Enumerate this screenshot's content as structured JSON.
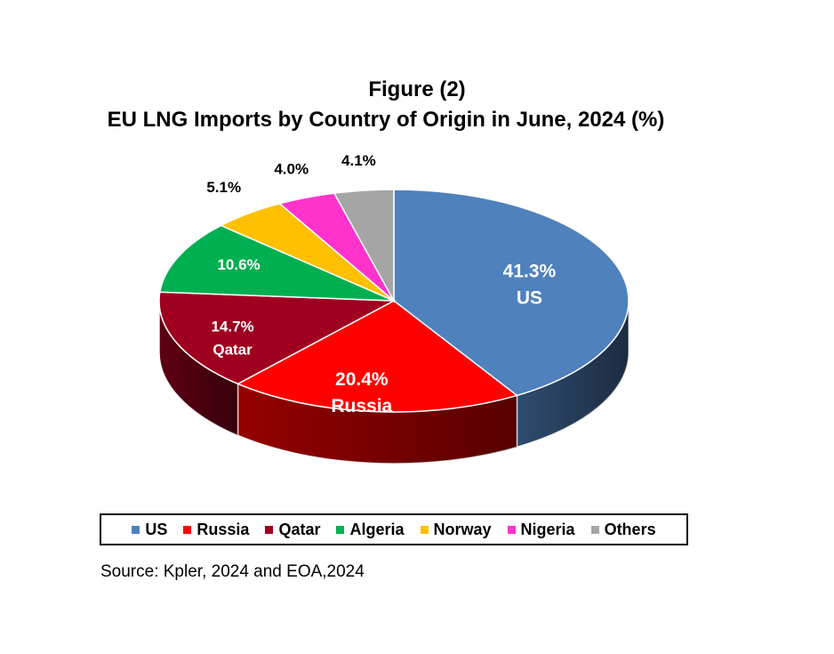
{
  "figure": {
    "title": "Figure (2)",
    "subtitle": "EU LNG Imports by Country of Origin in June, 2024 (%)",
    "source": "Source: Kpler, 2024 and EOA,2024"
  },
  "chart_data": {
    "type": "pie",
    "title": "EU LNG Imports by Country of Origin in June, 2024 (%)",
    "categories": [
      "US",
      "Russia",
      "Qatar",
      "Algeria",
      "Norway",
      "Nigeria",
      "Others"
    ],
    "values": [
      41.3,
      20.4,
      14.7,
      10.6,
      5.1,
      4.0,
      4.1
    ],
    "value_labels": [
      "41.3%",
      "20.4%",
      "14.7%",
      "10.6%",
      "5.1%",
      "4.0%",
      "4.1%"
    ],
    "colors": [
      "#4f81bd",
      "#ff0000",
      "#a00020",
      "#00b050",
      "#ffc000",
      "#ff33cc",
      "#a5a5a5"
    ],
    "legend": "bottom",
    "style": "3d"
  }
}
